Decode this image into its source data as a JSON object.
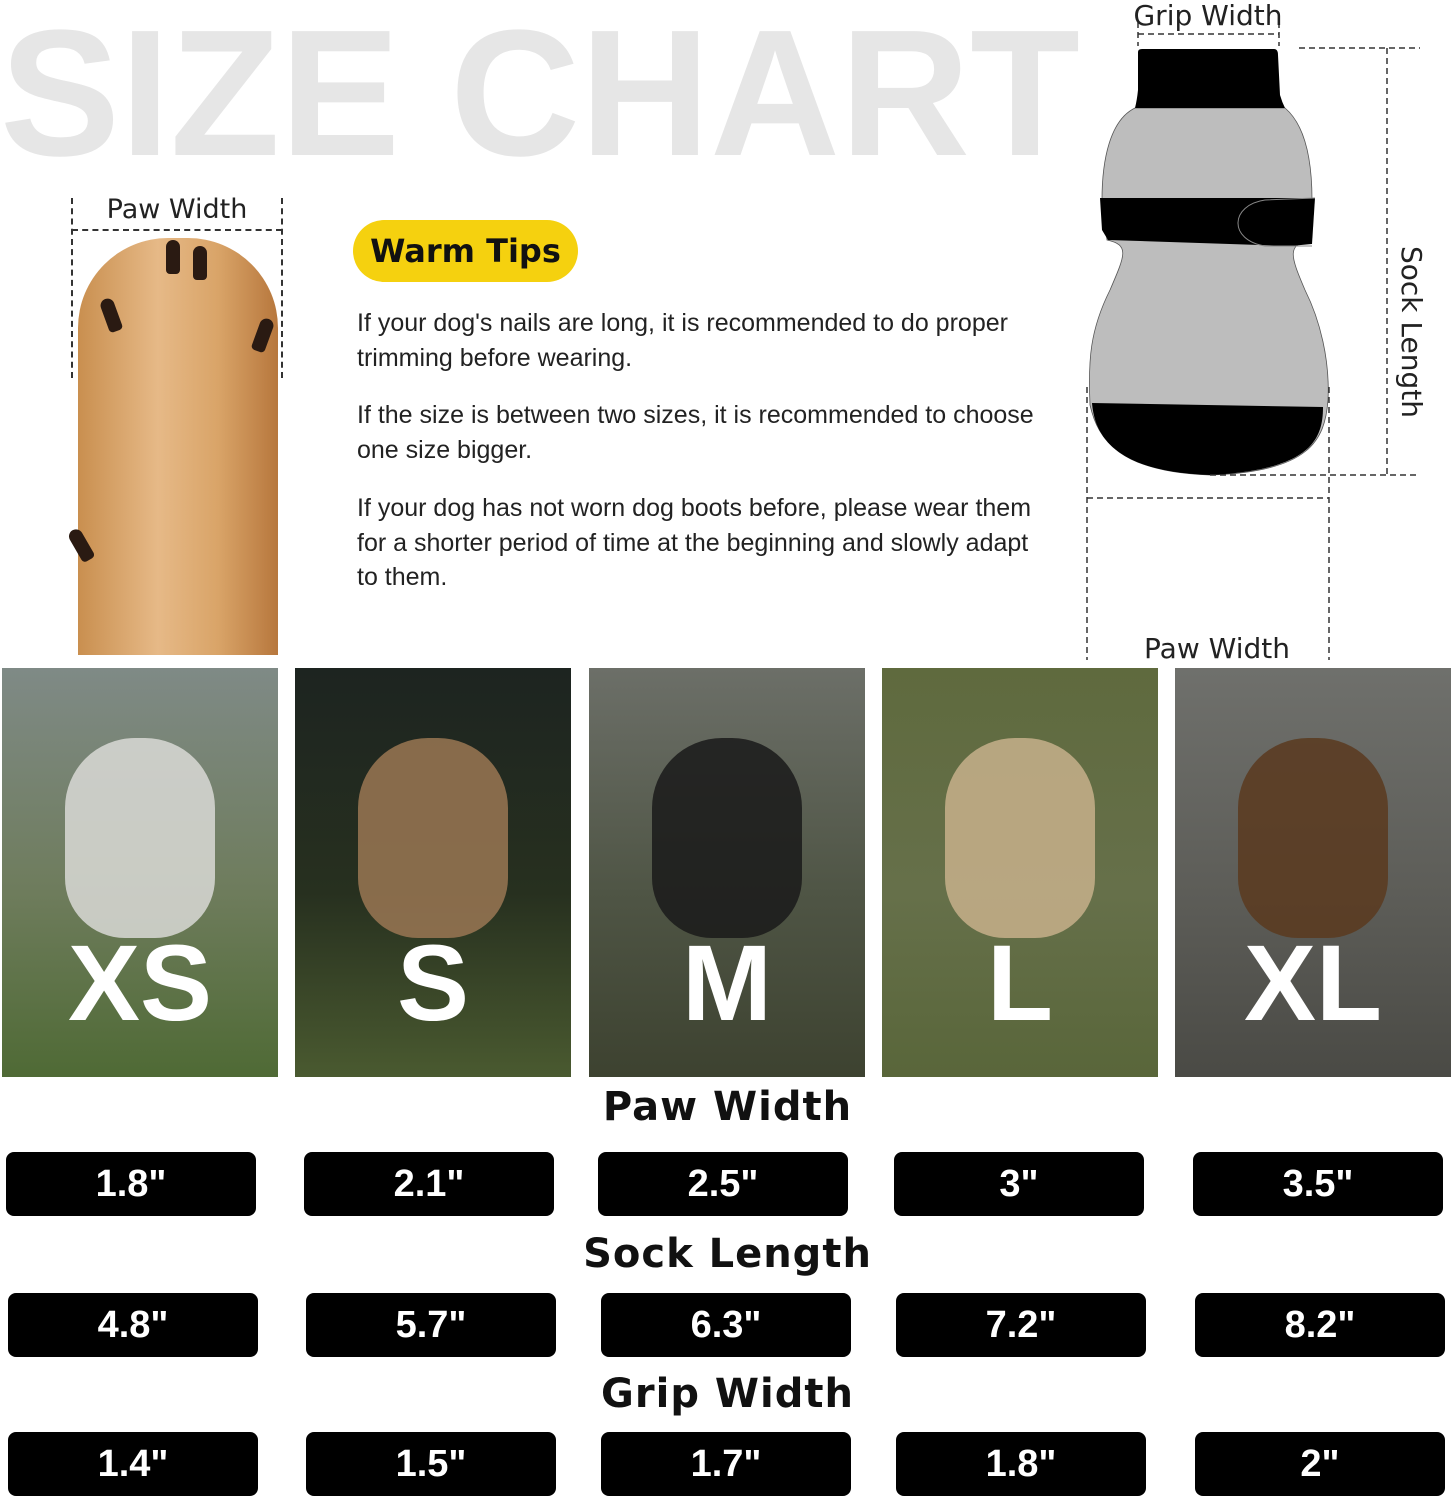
{
  "watermark": "SIZE CHART",
  "paw_diagram": {
    "label": "Paw Width"
  },
  "warm_tips": {
    "title": "Warm Tips",
    "tips": [
      "If your dog's nails are long, it is recommended to do proper trimming before wearing.",
      "If the size is between two sizes, it is recommended to choose one size bigger.",
      "If your dog has not worn dog boots before, please wear them for a shorter period of time at the beginning and slowly adapt to them."
    ]
  },
  "sock_diagram": {
    "grip_width": "Grip Width",
    "sock_length": "Sock Length",
    "paw_width": "Paw Width"
  },
  "colors": {
    "tips_badge": "#f5d10f",
    "sock_body": "#bdbdbd",
    "sock_bands": "#000000",
    "watermark": "#e6e6e6"
  },
  "sizes": [
    "XS",
    "S",
    "M",
    "L",
    "XL"
  ],
  "measurements": [
    {
      "title": "Paw Width",
      "values": [
        "1.8\"",
        "2.1\"",
        "2.5\"",
        "3\"",
        "3.5\""
      ]
    },
    {
      "title": "Sock Length",
      "values": [
        "4.8\"",
        "5.7\"",
        "6.3\"",
        "7.2\"",
        "8.2\""
      ]
    },
    {
      "title": "Grip Width",
      "values": [
        "1.4\"",
        "1.5\"",
        "1.7\"",
        "1.8\"",
        "2\""
      ]
    }
  ]
}
